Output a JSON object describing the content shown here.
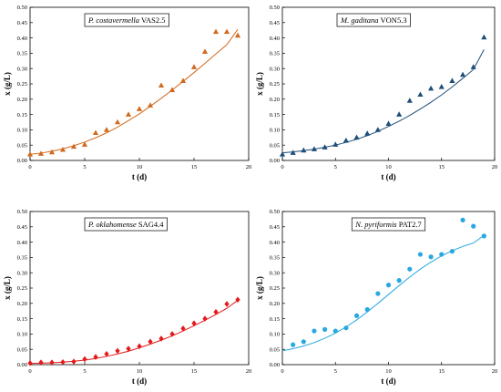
{
  "chart_data": [
    {
      "type": "scatter",
      "legend": {
        "name": "P. costavermella",
        "strain": "VAS2.5",
        "placement": "top-left"
      },
      "xlabel": "t (d)",
      "ylabel": "x (g/L)",
      "xlim": [
        0,
        20
      ],
      "ylim": [
        0,
        0.5
      ],
      "xticks": [
        "0",
        "5",
        "10",
        "15",
        "20"
      ],
      "yticks": [
        "0.00",
        "0.05",
        "0.10",
        "0.15",
        "0.20",
        "0.25",
        "0.30",
        "0.35",
        "0.40",
        "0.45",
        "0.50"
      ],
      "grid": false,
      "marker": "triangle",
      "color": "#d2691e",
      "series": [
        {
          "x": [
            0,
            1,
            2,
            3,
            4,
            5,
            6,
            7,
            8,
            9,
            10,
            11,
            12,
            13,
            14,
            15,
            16,
            17,
            18,
            19
          ],
          "y": [
            0.02,
            0.022,
            0.027,
            0.035,
            0.045,
            0.052,
            0.09,
            0.1,
            0.125,
            0.15,
            0.168,
            0.18,
            0.245,
            0.23,
            0.26,
            0.305,
            0.355,
            0.42,
            0.42,
            0.408
          ]
        }
      ],
      "fit": {
        "x": [
          0,
          1,
          2,
          3,
          4,
          5,
          6,
          7,
          8,
          9,
          10,
          11,
          12,
          13,
          14,
          15,
          16,
          17,
          18,
          19
        ],
        "y": [
          0.02,
          0.024,
          0.03,
          0.038,
          0.048,
          0.06,
          0.074,
          0.09,
          0.109,
          0.13,
          0.152,
          0.177,
          0.203,
          0.23,
          0.258,
          0.287,
          0.317,
          0.348,
          0.378,
          0.428
        ]
      }
    },
    {
      "type": "scatter",
      "legend": {
        "name": "M. gaditana",
        "strain": "VON5.3",
        "placement": "top-left"
      },
      "xlabel": "t (d)",
      "ylabel": "x (g/L)",
      "xlim": [
        0,
        20
      ],
      "ylim": [
        0,
        0.5
      ],
      "xticks": [
        "0",
        "5",
        "10",
        "15",
        "20"
      ],
      "yticks": [
        "0.00",
        "0.05",
        "0.10",
        "0.15",
        "0.20",
        "0.25",
        "0.30",
        "0.35",
        "0.40",
        "0.45",
        "0.50"
      ],
      "grid": false,
      "marker": "triangle",
      "color": "#1f4e79",
      "series": [
        {
          "x": [
            0,
            1,
            2,
            3,
            4,
            5,
            6,
            7,
            8,
            9,
            10,
            11,
            12,
            13,
            14,
            15,
            16,
            17,
            18,
            19
          ],
          "y": [
            0.02,
            0.025,
            0.033,
            0.037,
            0.043,
            0.052,
            0.065,
            0.075,
            0.088,
            0.1,
            0.12,
            0.15,
            0.195,
            0.215,
            0.235,
            0.24,
            0.26,
            0.28,
            0.305,
            0.402
          ]
        }
      ],
      "fit": {
        "x": [
          0,
          1,
          2,
          3,
          4,
          5,
          6,
          7,
          8,
          9,
          10,
          11,
          12,
          13,
          14,
          15,
          16,
          17,
          18,
          19
        ],
        "y": [
          0.025,
          0.028,
          0.032,
          0.037,
          0.043,
          0.05,
          0.059,
          0.069,
          0.081,
          0.095,
          0.111,
          0.128,
          0.147,
          0.168,
          0.19,
          0.214,
          0.24,
          0.268,
          0.297,
          0.362
        ]
      }
    },
    {
      "type": "scatter",
      "legend": {
        "name": "P. oklahomense",
        "strain": "SAG4.4",
        "placement": "top-left"
      },
      "xlabel": "t (d)",
      "ylabel": "x (g/L)",
      "xlim": [
        0,
        20
      ],
      "ylim": [
        0,
        0.5
      ],
      "xticks": [
        "0",
        "5",
        "10",
        "15",
        "20"
      ],
      "yticks": [
        "0.00",
        "0.05",
        "0.10",
        "0.15",
        "0.20",
        "0.25",
        "0.30",
        "0.35",
        "0.40",
        "0.45",
        "0.50"
      ],
      "grid": false,
      "marker": "diamond",
      "color": "#e31a1c",
      "series": [
        {
          "x": [
            0,
            1,
            2,
            3,
            4,
            5,
            6,
            7,
            8,
            9,
            10,
            11,
            12,
            13,
            14,
            15,
            16,
            17,
            18,
            19
          ],
          "y": [
            0.005,
            0.007,
            0.007,
            0.008,
            0.01,
            0.018,
            0.025,
            0.035,
            0.045,
            0.052,
            0.06,
            0.075,
            0.085,
            0.1,
            0.118,
            0.135,
            0.15,
            0.172,
            0.198,
            0.212
          ]
        }
      ],
      "fit": {
        "x": [
          0,
          1,
          2,
          3,
          4,
          5,
          6,
          7,
          8,
          9,
          10,
          11,
          12,
          13,
          14,
          15,
          16,
          17,
          18,
          19
        ],
        "y": [
          0.004,
          0.005,
          0.006,
          0.008,
          0.011,
          0.015,
          0.02,
          0.027,
          0.035,
          0.044,
          0.055,
          0.067,
          0.08,
          0.094,
          0.11,
          0.127,
          0.145,
          0.164,
          0.184,
          0.21
        ]
      }
    },
    {
      "type": "scatter",
      "legend": {
        "name": "N. pyriformis",
        "strain": "PAT2.7",
        "placement": "top-center"
      },
      "xlabel": "t (d)",
      "ylabel": "x (g/L)",
      "xlim": [
        0,
        20
      ],
      "ylim": [
        0,
        0.5
      ],
      "xticks": [
        "0",
        "5",
        "10",
        "15",
        "20"
      ],
      "yticks": [
        "0.00",
        "0.05",
        "0.10",
        "0.15",
        "0.20",
        "0.25",
        "0.30",
        "0.35",
        "0.40",
        "0.45",
        "0.50"
      ],
      "grid": false,
      "marker": "circle",
      "color": "#29a8e0",
      "series": [
        {
          "x": [
            1,
            2,
            3,
            4,
            5,
            6,
            7,
            8,
            9,
            10,
            11,
            12,
            13,
            14,
            15,
            16,
            17,
            18,
            19
          ],
          "y": [
            0.065,
            0.075,
            0.11,
            0.115,
            0.11,
            0.12,
            0.16,
            0.18,
            0.232,
            0.26,
            0.275,
            0.312,
            0.36,
            0.352,
            0.36,
            0.37,
            0.472,
            0.452,
            0.42
          ]
        }
      ],
      "fit": {
        "x": [
          0,
          1,
          2,
          3,
          4,
          5,
          6,
          7,
          8,
          9,
          10,
          11,
          12,
          13,
          14,
          15,
          16,
          17,
          18,
          19
        ],
        "y": [
          0.045,
          0.052,
          0.061,
          0.072,
          0.086,
          0.103,
          0.123,
          0.146,
          0.172,
          0.2,
          0.229,
          0.258,
          0.286,
          0.312,
          0.335,
          0.355,
          0.372,
          0.386,
          0.397,
          0.422
        ]
      }
    }
  ]
}
